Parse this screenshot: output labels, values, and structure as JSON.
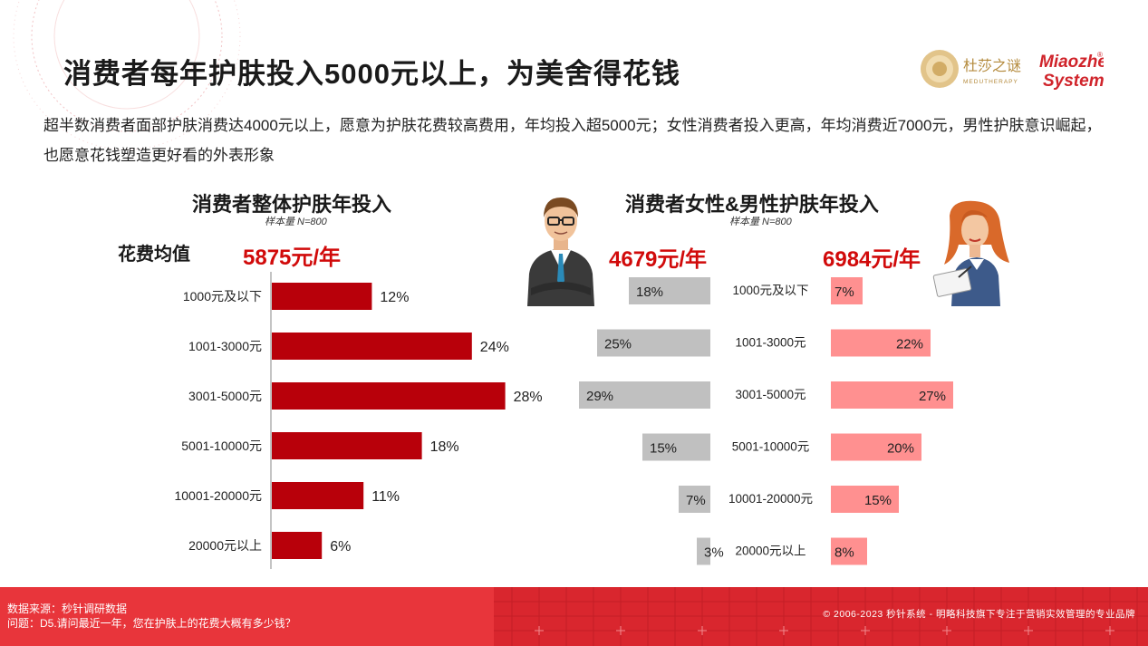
{
  "title": "消费者每年护肤投入5000元以上，为美舍得花钱",
  "subtitle": "超半数消费者面部护肤消费达4000元以上，愿意为护肤花费较高费用，年均投入超5000元；女性消费者投入更高，年均消费近7000元，男性护肤意识崛起，也愿意花钱塑造更好看的外表形象",
  "logo": {
    "brand_cn": "杜莎之谜",
    "brand_en": "MEDUTHERAPY",
    "partner_line1": "Miaozhen",
    "partner_line2": "Systems",
    "mark": "®"
  },
  "colors": {
    "overall_bar": "#b8000a",
    "male_bar": "#c0c0c0",
    "female_bar": "#ff9090",
    "accent_red": "#d10a0a",
    "footer": "#e8353b"
  },
  "left_chart": {
    "title": "消费者整体护肤年投入",
    "sample": "样本量 N=800",
    "avg_label": "花费均值",
    "avg_value": "5875元/年"
  },
  "right_chart": {
    "title": "消费者女性&男性护肤年投入",
    "sample": "样本量 N=800",
    "male_avg": "4679元/年",
    "female_avg": "6984元/年",
    "male_icon": "businessman-icon",
    "female_icon": "businesswoman-icon"
  },
  "chart_data": [
    {
      "type": "bar",
      "orientation": "horizontal",
      "title": "消费者整体护肤年投入",
      "categories": [
        "1000元及以下",
        "1001-3000元",
        "3001-5000元",
        "5001-10000元",
        "10001-20000元",
        "20000元以上"
      ],
      "series": [
        {
          "values": [
            12,
            24,
            28,
            18,
            11,
            6
          ]
        }
      ],
      "unit": "%",
      "xlim": [
        0,
        35
      ]
    },
    {
      "type": "bar",
      "orientation": "horizontal-butterfly",
      "title": "消费者女性&男性护肤年投入",
      "categories": [
        "1000元及以下",
        "1001-3000元",
        "3001-5000元",
        "5001-10000元",
        "10001-20000元",
        "20000元以上"
      ],
      "series": [
        {
          "side": "left",
          "values": [
            18,
            25,
            29,
            15,
            7,
            3
          ]
        },
        {
          "side": "right",
          "values": [
            7,
            22,
            27,
            20,
            15,
            8
          ]
        }
      ],
      "unit": "%",
      "xlim": [
        0,
        35
      ]
    }
  ],
  "footer": {
    "source": "数据来源：秒针调研数据",
    "question": "问题：D5.请问最近一年，您在护肤上的花费大概有多少钱？",
    "copyright": "© 2006-2023  秒针系统  -  明略科技旗下专注于营销实效管理的专业品牌"
  }
}
